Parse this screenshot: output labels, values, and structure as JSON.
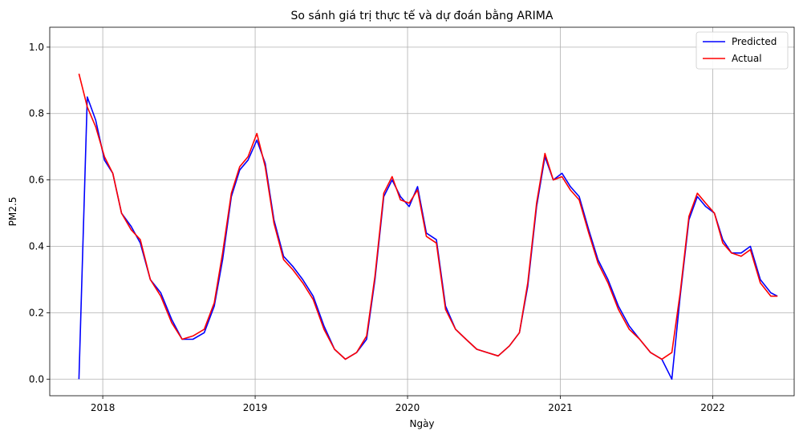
{
  "chart_data": {
    "type": "line",
    "title": "So sánh giá trị thực tế và dự đoán bằng ARIMA",
    "xlabel": "Ngày",
    "ylabel": "PM2.5",
    "xlim": [
      "2017-08-27",
      "2022-07-15"
    ],
    "ylim": [
      -0.05,
      1.06
    ],
    "x_ticks": [
      "2018-01-01",
      "2019-01-01",
      "2020-01-01",
      "2021-01-01",
      "2022-01-01"
    ],
    "x_tick_labels": [
      "2018",
      "2019",
      "2020",
      "2021",
      "2022"
    ],
    "y_ticks": [
      0.0,
      0.2,
      0.4,
      0.6,
      0.8,
      1.0
    ],
    "y_tick_labels": [
      "0.0",
      "0.2",
      "0.4",
      "0.6",
      "0.8",
      "1.0"
    ],
    "grid": true,
    "legend_position": "top-right",
    "x": [
      "2017-11-05",
      "2017-11-25",
      "2017-12-15",
      "2018-01-05",
      "2018-01-25",
      "2018-02-15",
      "2018-03-10",
      "2018-04-01",
      "2018-04-25",
      "2018-05-20",
      "2018-06-15",
      "2018-07-10",
      "2018-08-05",
      "2018-09-01",
      "2018-09-25",
      "2018-10-15",
      "2018-11-05",
      "2018-11-25",
      "2018-12-15",
      "2019-01-05",
      "2019-01-25",
      "2019-02-15",
      "2019-03-10",
      "2019-04-01",
      "2019-04-25",
      "2019-05-20",
      "2019-06-15",
      "2019-07-10",
      "2019-08-05",
      "2019-09-01",
      "2019-09-25",
      "2019-10-15",
      "2019-11-05",
      "2019-11-25",
      "2019-12-15",
      "2020-01-05",
      "2020-01-25",
      "2020-02-15",
      "2020-03-10",
      "2020-04-01",
      "2020-04-25",
      "2020-05-20",
      "2020-06-15",
      "2020-07-10",
      "2020-08-05",
      "2020-09-01",
      "2020-09-25",
      "2020-10-15",
      "2020-11-05",
      "2020-11-25",
      "2020-12-15",
      "2021-01-05",
      "2021-01-25",
      "2021-02-15",
      "2021-03-10",
      "2021-04-01",
      "2021-04-25",
      "2021-05-20",
      "2021-06-15",
      "2021-07-10",
      "2021-08-05",
      "2021-09-01",
      "2021-09-25",
      "2021-10-15",
      "2021-11-05",
      "2021-11-25",
      "2021-12-15",
      "2022-01-05",
      "2022-01-25",
      "2022-02-15",
      "2022-03-10",
      "2022-04-01",
      "2022-04-25",
      "2022-05-20",
      "2022-06-05"
    ],
    "series": [
      {
        "name": "Predicted",
        "color": "#0000ff",
        "values": [
          0.0,
          0.85,
          0.78,
          0.66,
          0.62,
          0.5,
          0.46,
          0.41,
          0.3,
          0.26,
          0.18,
          0.12,
          0.12,
          0.14,
          0.22,
          0.36,
          0.55,
          0.63,
          0.66,
          0.72,
          0.65,
          0.48,
          0.37,
          0.34,
          0.3,
          0.25,
          0.16,
          0.09,
          0.06,
          0.08,
          0.12,
          0.3,
          0.55,
          0.6,
          0.55,
          0.52,
          0.58,
          0.44,
          0.42,
          0.22,
          0.15,
          0.12,
          0.09,
          0.08,
          0.07,
          0.1,
          0.14,
          0.28,
          0.52,
          0.67,
          0.6,
          0.62,
          0.58,
          0.55,
          0.45,
          0.36,
          0.3,
          0.22,
          0.16,
          0.12,
          0.08,
          0.06,
          0.0,
          0.25,
          0.48,
          0.55,
          0.52,
          0.5,
          0.42,
          0.38,
          0.38,
          0.4,
          0.3,
          0.26,
          0.25
        ]
      },
      {
        "name": "Actual",
        "color": "#ff0000",
        "values": [
          0.92,
          0.82,
          0.76,
          0.67,
          0.62,
          0.5,
          0.45,
          0.42,
          0.3,
          0.25,
          0.17,
          0.12,
          0.13,
          0.15,
          0.23,
          0.38,
          0.56,
          0.64,
          0.67,
          0.74,
          0.64,
          0.47,
          0.36,
          0.33,
          0.29,
          0.24,
          0.15,
          0.09,
          0.06,
          0.08,
          0.13,
          0.31,
          0.56,
          0.61,
          0.54,
          0.53,
          0.57,
          0.43,
          0.41,
          0.21,
          0.15,
          0.12,
          0.09,
          0.08,
          0.07,
          0.1,
          0.14,
          0.29,
          0.53,
          0.68,
          0.6,
          0.61,
          0.57,
          0.54,
          0.44,
          0.35,
          0.29,
          0.21,
          0.15,
          0.12,
          0.08,
          0.06,
          0.08,
          0.26,
          0.49,
          0.56,
          0.53,
          0.5,
          0.41,
          0.38,
          0.37,
          0.39,
          0.29,
          0.25,
          0.25
        ]
      }
    ]
  }
}
